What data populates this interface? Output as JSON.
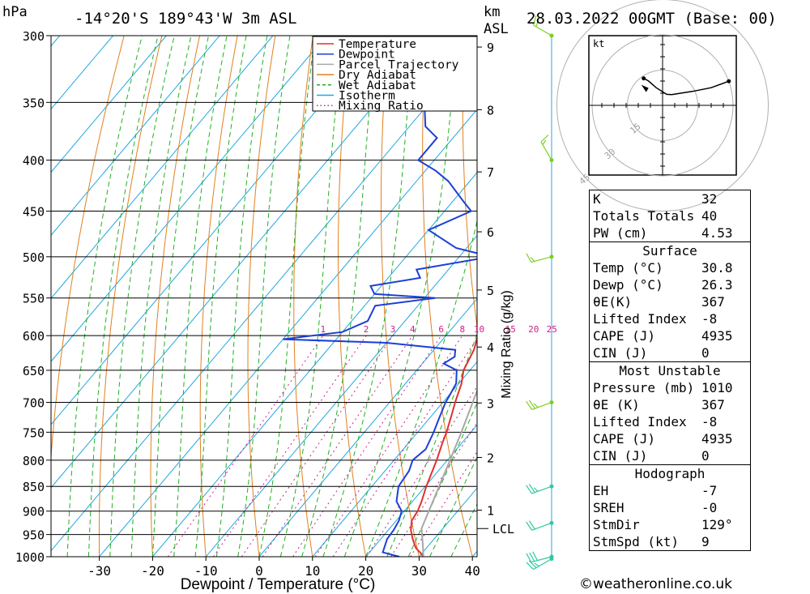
{
  "header": {
    "pressure_unit": "hPa",
    "location": "-14°20'S 189°43'W 3m ASL",
    "km_label": "km",
    "asl_label": "ASL",
    "datetime": "28.03.2022 00GMT (Base: 00)"
  },
  "footer": {
    "copyright": "©weatheronline.co.uk"
  },
  "table": {
    "top": [
      {
        "label": "K",
        "value": "32"
      },
      {
        "label": "Totals Totals",
        "value": "40"
      },
      {
        "label": "PW (cm)",
        "value": "4.53"
      }
    ],
    "surface_title": "Surface",
    "surface": [
      {
        "label": "Temp (°C)",
        "value": "30.8"
      },
      {
        "label": "Dewp (°C)",
        "value": "26.3"
      },
      {
        "label": "θE(K)",
        "value": "367"
      },
      {
        "label": "Lifted Index",
        "value": "-8"
      },
      {
        "label": "CAPE (J)",
        "value": "4935"
      },
      {
        "label": "CIN (J)",
        "value": "0"
      }
    ],
    "mu_title": "Most Unstable",
    "mu": [
      {
        "label": "Pressure (mb)",
        "value": "1010"
      },
      {
        "label": "θE (K)",
        "value": "367"
      },
      {
        "label": "Lifted Index",
        "value": "-8"
      },
      {
        "label": "CAPE (J)",
        "value": "4935"
      },
      {
        "label": "CIN (J)",
        "value": "0"
      }
    ],
    "hodo_title": "Hodograph",
    "hodo": [
      {
        "label": "EH",
        "value": "-7"
      },
      {
        "label": "SREH",
        "value": "-0"
      },
      {
        "label": "StmDir",
        "value": "129°"
      },
      {
        "label": "StmSpd (kt)",
        "value": "9"
      }
    ]
  },
  "hodograph": {
    "unit": "kt",
    "rings": [
      "15",
      "30",
      "45"
    ]
  },
  "chart_data": {
    "type": "line",
    "title": "Skew-T log-P sounding",
    "xlabel": "Dewpoint / Temperature (°C)",
    "ylabel": "hPa",
    "y2label": "Mixing Ratio (g/kg)",
    "xlim": [
      -40,
      40
    ],
    "ylim": [
      1000,
      300
    ],
    "x_ticks": [
      -30,
      -20,
      -10,
      0,
      10,
      20,
      30,
      40
    ],
    "x_tick_labels": [
      "-30",
      "-20",
      "-10",
      "0",
      "10",
      "20",
      "30",
      "40"
    ],
    "pressure_levels": [
      300,
      350,
      400,
      450,
      500,
      550,
      600,
      650,
      700,
      750,
      800,
      850,
      900,
      950,
      1000
    ],
    "pressure_labels": [
      "300",
      "350",
      "400",
      "450",
      "500",
      "550",
      "600",
      "650",
      "700",
      "750",
      "800",
      "850",
      "900",
      "950",
      "1000"
    ],
    "km_ticks": [
      {
        "km": "1",
        "p": 898
      },
      {
        "km": "2",
        "p": 795
      },
      {
        "km": "3",
        "p": 701
      },
      {
        "km": "4",
        "p": 616
      },
      {
        "km": "5",
        "p": 540
      },
      {
        "km": "6",
        "p": 472
      },
      {
        "km": "7",
        "p": 411
      },
      {
        "km": "8",
        "p": 356
      },
      {
        "km": "9",
        "p": 308
      }
    ],
    "lcl": {
      "label": "LCL",
      "p": 937
    },
    "mixing_ratio_labels": [
      "1",
      "2",
      "3",
      "4",
      "6",
      "8",
      "10",
      "15",
      "20",
      "25"
    ],
    "mixing_ratio_values": [
      1,
      2,
      3,
      4,
      6,
      8,
      10,
      15,
      20,
      25
    ],
    "legend": [
      {
        "name": "Temperature",
        "color": "#e03030",
        "style": "solid"
      },
      {
        "name": "Dewpoint",
        "color": "#1c3fd8",
        "style": "solid"
      },
      {
        "name": "Parcel Trajectory",
        "color": "#a8a8a8",
        "style": "solid"
      },
      {
        "name": "Dry Adiabat",
        "color": "#e08020",
        "style": "solid"
      },
      {
        "name": "Wet Adiabat",
        "color": "#20b020",
        "style": "dashed"
      },
      {
        "name": "Isotherm",
        "color": "#20a8e0",
        "style": "solid"
      },
      {
        "name": "Mixing Ratio",
        "color": "#d0208a",
        "style": "dotted"
      }
    ],
    "series": [
      {
        "name": "Temperature",
        "points": [
          [
            1000,
            30.8
          ],
          [
            990,
            29.5
          ],
          [
            980,
            28.0
          ],
          [
            960,
            26.0
          ],
          [
            940,
            24.2
          ],
          [
            920,
            22.9
          ],
          [
            900,
            22.5
          ],
          [
            880,
            21.7
          ],
          [
            850,
            20.2
          ],
          [
            820,
            18.9
          ],
          [
            800,
            18.0
          ],
          [
            770,
            16.4
          ],
          [
            750,
            15.4
          ],
          [
            720,
            13.6
          ],
          [
            700,
            12.3
          ],
          [
            670,
            10.5
          ],
          [
            650,
            8.8
          ],
          [
            620,
            7.5
          ],
          [
            600,
            6.0
          ],
          [
            570,
            4.4
          ],
          [
            550,
            3.3
          ],
          [
            530,
            1.5
          ],
          [
            500,
            -1.2
          ],
          [
            480,
            -3.6
          ],
          [
            460,
            -6.6
          ],
          [
            450,
            -8.2
          ],
          [
            430,
            -9.8
          ],
          [
            410,
            -12.4
          ],
          [
            400,
            -13.9
          ],
          [
            380,
            -17.5
          ],
          [
            370,
            -19.6
          ],
          [
            360,
            -21.4
          ],
          [
            350,
            -23.5
          ],
          [
            330,
            -26.8
          ],
          [
            310,
            -30.5
          ],
          [
            300,
            -32.5
          ]
        ]
      },
      {
        "name": "Dewpoint",
        "points": [
          [
            1000,
            26.3
          ],
          [
            990,
            22.5
          ],
          [
            960,
            21.2
          ],
          [
            940,
            21.0
          ],
          [
            920,
            20.5
          ],
          [
            900,
            19.5
          ],
          [
            880,
            17.0
          ],
          [
            850,
            15.0
          ],
          [
            820,
            14.5
          ],
          [
            800,
            13.5
          ],
          [
            780,
            14.2
          ],
          [
            750,
            13.0
          ],
          [
            730,
            12.0
          ],
          [
            700,
            10.5
          ],
          [
            690,
            10.2
          ],
          [
            670,
            9.5
          ],
          [
            650,
            7.5
          ],
          [
            640,
            4.0
          ],
          [
            630,
            5.0
          ],
          [
            620,
            4.0
          ],
          [
            610,
            -10.0
          ],
          [
            605,
            -30.0
          ],
          [
            595,
            -20.0
          ],
          [
            580,
            -17.0
          ],
          [
            560,
            -18.0
          ],
          [
            550,
            -8.0
          ],
          [
            545,
            -20.0
          ],
          [
            535,
            -22.0
          ],
          [
            525,
            -14.0
          ],
          [
            515,
            -16.0
          ],
          [
            500,
            -4.0
          ],
          [
            490,
            -12.0
          ],
          [
            470,
            -20.0
          ],
          [
            450,
            -15.0
          ],
          [
            440,
            -18.0
          ],
          [
            420,
            -24.0
          ],
          [
            410,
            -28.0
          ],
          [
            400,
            -33.0
          ],
          [
            380,
            -33.0
          ],
          [
            370,
            -37.0
          ],
          [
            350,
            -41.0
          ],
          [
            340,
            -43.0
          ],
          [
            320,
            -44.0
          ],
          [
            310,
            -48.0
          ],
          [
            300,
            -51.0
          ]
        ]
      },
      {
        "name": "Parcel Trajectory",
        "points": [
          [
            1000,
            30.8
          ],
          [
            970,
            28.6
          ],
          [
            937,
            26.0
          ],
          [
            900,
            24.6
          ],
          [
            850,
            22.6
          ],
          [
            800,
            20.5
          ],
          [
            750,
            18.2
          ],
          [
            700,
            15.6
          ],
          [
            650,
            12.8
          ],
          [
            600,
            9.6
          ],
          [
            550,
            5.9
          ],
          [
            500,
            1.5
          ],
          [
            450,
            -3.8
          ],
          [
            400,
            -10.2
          ],
          [
            350,
            -18.2
          ],
          [
            330,
            -22.0
          ]
        ]
      }
    ],
    "wind_barbs": [
      {
        "p": 300,
        "dir": 300,
        "kt": 20
      },
      {
        "p": 400,
        "dir": 330,
        "kt": 15
      },
      {
        "p": 500,
        "dir": 255,
        "kt": 15
      },
      {
        "p": 700,
        "dir": 250,
        "kt": 25
      },
      {
        "p": 850,
        "dir": 250,
        "kt": 25
      },
      {
        "p": 925,
        "dir": 250,
        "kt": 20
      },
      {
        "p": 1000,
        "dir": 255,
        "kt": 30
      },
      {
        "p": 1005,
        "dir": 240,
        "kt": 25
      }
    ],
    "hodograph_trace": [
      {
        "dir": 250,
        "kt": 30
      },
      {
        "dir": 250,
        "kt": 22
      },
      {
        "dir": 245,
        "kt": 14
      },
      {
        "dir": 220,
        "kt": 6
      },
      {
        "dir": 200,
        "kt": 5
      },
      {
        "dir": 160,
        "kt": 8
      },
      {
        "dir": 150,
        "kt": 12
      },
      {
        "dir": 145,
        "kt": 14
      }
    ],
    "storm_motion": {
      "dir": 129,
      "kt": 9
    }
  }
}
